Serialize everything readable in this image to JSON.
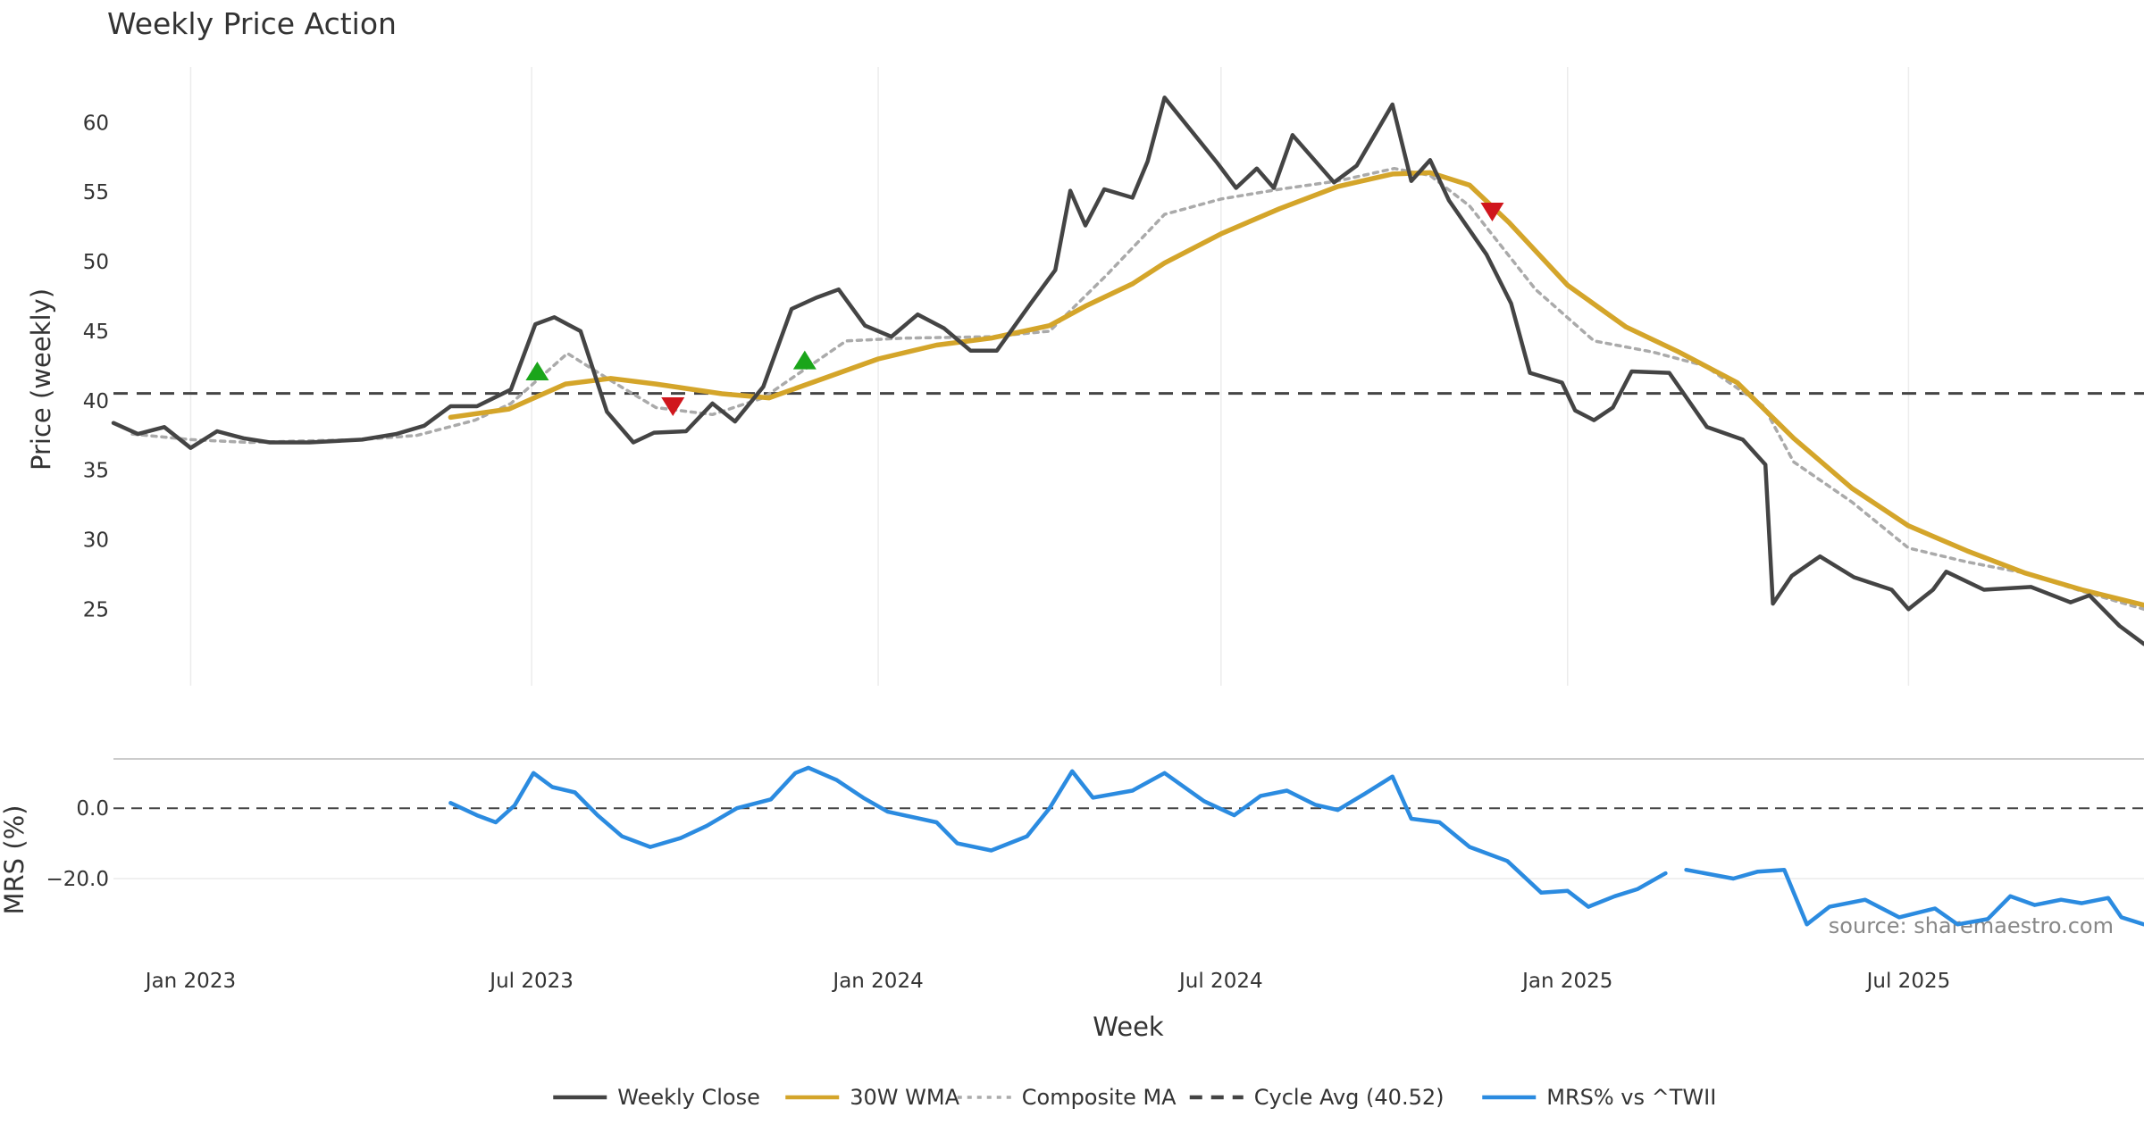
{
  "chart_data": {
    "type": "line",
    "title": "Weekly Price Action",
    "xlabel": "Week",
    "source": "source: sharemaestro.com",
    "x_ticks": [
      "Jan 2023",
      "Jul 2023",
      "Jan 2024",
      "Jul 2024",
      "Jan 2025",
      "Jul 2025"
    ],
    "x_range": [
      "2022-11-21",
      "2025-11-03"
    ],
    "price_panel": {
      "ylabel": "Price (weekly)",
      "ylim": [
        19.5,
        64.0
      ],
      "y_ticks": [
        "25",
        "30",
        "35",
        "40",
        "45",
        "50",
        "55",
        "60"
      ],
      "grid_x": true,
      "cycle_avg": 40.52,
      "series": [
        {
          "name": "Weekly Close",
          "color": "#444444",
          "points": [
            [
              "2022-11-21",
              38.4
            ],
            [
              "2022-12-04",
              37.6
            ],
            [
              "2022-12-18",
              38.1
            ],
            [
              "2023-01-01",
              36.6
            ],
            [
              "2023-01-15",
              37.8
            ],
            [
              "2023-01-29",
              37.3
            ],
            [
              "2023-02-12",
              37.0
            ],
            [
              "2023-03-05",
              37.0
            ],
            [
              "2023-04-02",
              37.2
            ],
            [
              "2023-04-20",
              37.6
            ],
            [
              "2023-05-05",
              38.2
            ],
            [
              "2023-05-19",
              39.6
            ],
            [
              "2023-06-02",
              39.6
            ],
            [
              "2023-06-20",
              40.8
            ],
            [
              "2023-07-03",
              45.5
            ],
            [
              "2023-07-13",
              46.0
            ],
            [
              "2023-07-27",
              45.0
            ],
            [
              "2023-08-10",
              39.2
            ],
            [
              "2023-08-24",
              37.0
            ],
            [
              "2023-09-04",
              37.7
            ],
            [
              "2023-09-21",
              37.8
            ],
            [
              "2023-10-05",
              39.8
            ],
            [
              "2023-10-17",
              38.5
            ],
            [
              "2023-11-01",
              41.0
            ],
            [
              "2023-11-16",
              46.6
            ],
            [
              "2023-11-29",
              47.4
            ],
            [
              "2023-12-11",
              48.0
            ],
            [
              "2023-12-25",
              45.4
            ],
            [
              "2024-01-08",
              44.6
            ],
            [
              "2024-01-22",
              46.2
            ],
            [
              "2024-02-05",
              45.2
            ],
            [
              "2024-02-19",
              43.6
            ],
            [
              "2024-03-04",
              43.6
            ],
            [
              "2024-03-22",
              47.0
            ],
            [
              "2024-04-04",
              49.4
            ],
            [
              "2024-04-12",
              55.1
            ],
            [
              "2024-04-20",
              52.6
            ],
            [
              "2024-04-30",
              55.2
            ],
            [
              "2024-05-15",
              54.6
            ],
            [
              "2024-05-23",
              57.2
            ],
            [
              "2024-06-01",
              61.8
            ],
            [
              "2024-06-29",
              57.1
            ],
            [
              "2024-07-09",
              55.3
            ],
            [
              "2024-07-20",
              56.7
            ],
            [
              "2024-07-29",
              55.3
            ],
            [
              "2024-08-08",
              59.1
            ],
            [
              "2024-08-30",
              55.7
            ],
            [
              "2024-09-11",
              56.9
            ],
            [
              "2024-09-30",
              61.3
            ],
            [
              "2024-10-10",
              55.8
            ],
            [
              "2024-10-20",
              57.3
            ],
            [
              "2024-10-30",
              54.4
            ],
            [
              "2024-11-19",
              50.5
            ],
            [
              "2024-12-02",
              47.0
            ],
            [
              "2024-12-12",
              42.0
            ],
            [
              "2024-12-29",
              41.3
            ],
            [
              "2025-01-05",
              39.3
            ],
            [
              "2025-01-15",
              38.6
            ],
            [
              "2025-01-25",
              39.5
            ],
            [
              "2025-02-04",
              42.1
            ],
            [
              "2025-02-24",
              42.0
            ],
            [
              "2025-03-16",
              38.1
            ],
            [
              "2025-04-04",
              37.2
            ],
            [
              "2025-04-16",
              35.4
            ],
            [
              "2025-04-20",
              25.4
            ],
            [
              "2025-04-30",
              27.4
            ],
            [
              "2025-05-15",
              28.8
            ],
            [
              "2025-06-02",
              27.3
            ],
            [
              "2025-06-22",
              26.4
            ],
            [
              "2025-07-01",
              25.0
            ],
            [
              "2025-07-14",
              26.4
            ],
            [
              "2025-07-21",
              27.7
            ],
            [
              "2025-08-10",
              26.4
            ],
            [
              "2025-09-04",
              26.6
            ],
            [
              "2025-09-25",
              25.5
            ],
            [
              "2025-10-05",
              26.0
            ],
            [
              "2025-10-21",
              23.8
            ],
            [
              "2025-11-03",
              22.5
            ]
          ]
        },
        {
          "name": "30W WMA",
          "color": "#d4a52a",
          "points": [
            [
              "2023-05-19",
              38.8
            ],
            [
              "2023-06-19",
              39.4
            ],
            [
              "2023-07-19",
              41.2
            ],
            [
              "2023-08-12",
              41.6
            ],
            [
              "2023-09-05",
              41.2
            ],
            [
              "2023-10-10",
              40.5
            ],
            [
              "2023-11-04",
              40.2
            ],
            [
              "2023-12-01",
              41.5
            ],
            [
              "2024-01-01",
              43.0
            ],
            [
              "2024-02-01",
              44.0
            ],
            [
              "2024-03-01",
              44.5
            ],
            [
              "2024-04-01",
              45.4
            ],
            [
              "2024-04-20",
              46.8
            ],
            [
              "2024-05-15",
              48.4
            ],
            [
              "2024-06-01",
              49.9
            ],
            [
              "2024-07-01",
              52.0
            ],
            [
              "2024-08-01",
              53.8
            ],
            [
              "2024-09-01",
              55.4
            ],
            [
              "2024-09-30",
              56.3
            ],
            [
              "2024-10-20",
              56.4
            ],
            [
              "2024-11-10",
              55.5
            ],
            [
              "2024-12-01",
              52.8
            ],
            [
              "2025-01-01",
              48.3
            ],
            [
              "2025-02-01",
              45.3
            ],
            [
              "2025-03-01",
              43.5
            ],
            [
              "2025-04-01",
              41.3
            ],
            [
              "2025-05-01",
              37.3
            ],
            [
              "2025-06-01",
              33.7
            ],
            [
              "2025-07-01",
              31.0
            ],
            [
              "2025-08-01",
              29.2
            ],
            [
              "2025-09-01",
              27.6
            ],
            [
              "2025-10-01",
              26.4
            ],
            [
              "2025-11-03",
              25.3
            ]
          ]
        },
        {
          "name": "Composite MA",
          "color": "#aaaaaa",
          "points": [
            [
              "2022-12-01",
              37.6
            ],
            [
              "2023-01-01",
              37.2
            ],
            [
              "2023-02-01",
              37.0
            ],
            [
              "2023-03-01",
              37.1
            ],
            [
              "2023-04-01",
              37.2
            ],
            [
              "2023-05-01",
              37.5
            ],
            [
              "2023-06-01",
              38.6
            ],
            [
              "2023-06-20",
              39.8
            ],
            [
              "2023-07-20",
              43.4
            ],
            [
              "2023-08-15",
              41.2
            ],
            [
              "2023-09-05",
              39.5
            ],
            [
              "2023-10-05",
              39.0
            ],
            [
              "2023-11-01",
              40.2
            ],
            [
              "2023-12-15",
              44.3
            ],
            [
              "2024-01-15",
              44.5
            ],
            [
              "2024-03-01",
              44.6
            ],
            [
              "2024-04-01",
              45.0
            ],
            [
              "2024-05-01",
              49.0
            ],
            [
              "2024-06-01",
              53.4
            ],
            [
              "2024-07-01",
              54.5
            ],
            [
              "2024-08-01",
              55.2
            ],
            [
              "2024-09-01",
              55.8
            ],
            [
              "2024-10-01",
              56.7
            ],
            [
              "2024-10-20",
              56.2
            ],
            [
              "2024-11-10",
              54.0
            ],
            [
              "2024-12-15",
              48.0
            ],
            [
              "2025-01-15",
              44.3
            ],
            [
              "2025-02-15",
              43.5
            ],
            [
              "2025-03-15",
              42.5
            ],
            [
              "2025-04-15",
              39.6
            ],
            [
              "2025-05-01",
              35.6
            ],
            [
              "2025-06-01",
              32.7
            ],
            [
              "2025-07-01",
              29.4
            ],
            [
              "2025-08-01",
              28.4
            ],
            [
              "2025-09-01",
              27.6
            ],
            [
              "2025-10-01",
              26.3
            ],
            [
              "2025-11-03",
              25.0
            ]
          ]
        }
      ],
      "buy_markers": [
        [
          "2023-07-04",
          42.1
        ],
        [
          "2023-11-23",
          42.9
        ]
      ],
      "sell_markers": [
        [
          "2023-09-14",
          39.6
        ],
        [
          "2024-11-22",
          53.6
        ]
      ]
    },
    "mrs_panel": {
      "ylabel": "MRS (%)",
      "ylim": [
        -38.0,
        14.0
      ],
      "y_ticks": [
        "0.0",
        "−20.0"
      ],
      "zero_line": 0,
      "series": [
        {
          "name": "MRS% vs ^TWII",
          "color": "#2b8be0",
          "segments": [
            [
              [
                "2023-05-19",
                1.5
              ],
              [
                "2023-06-02",
                -2.0
              ],
              [
                "2023-06-12",
                -4.0
              ],
              [
                "2023-06-22",
                0.8
              ],
              [
                "2023-07-02",
                10.0
              ],
              [
                "2023-07-12",
                6.0
              ],
              [
                "2023-07-24",
                4.5
              ],
              [
                "2023-08-05",
                -2.0
              ],
              [
                "2023-08-18",
                -8.0
              ],
              [
                "2023-09-02",
                -11.0
              ],
              [
                "2023-09-18",
                -8.5
              ],
              [
                "2023-10-02",
                -5.0
              ],
              [
                "2023-10-18",
                0.0
              ],
              [
                "2023-11-05",
                2.5
              ],
              [
                "2023-11-18",
                10.0
              ],
              [
                "2023-11-25",
                11.5
              ],
              [
                "2023-12-10",
                8.0
              ],
              [
                "2023-12-24",
                3.0
              ],
              [
                "2024-01-06",
                -1.0
              ],
              [
                "2024-02-01",
                -4.0
              ],
              [
                "2024-02-12",
                -10.0
              ],
              [
                "2024-03-01",
                -12.0
              ],
              [
                "2024-03-20",
                -8.0
              ],
              [
                "2024-04-01",
                0.0
              ],
              [
                "2024-04-13",
                10.5
              ],
              [
                "2024-04-24",
                3.0
              ],
              [
                "2024-05-15",
                5.0
              ],
              [
                "2024-06-01",
                10.0
              ],
              [
                "2024-06-22",
                2.0
              ],
              [
                "2024-07-08",
                -2.0
              ],
              [
                "2024-07-22",
                3.5
              ],
              [
                "2024-08-05",
                5.0
              ],
              [
                "2024-08-20",
                1.0
              ],
              [
                "2024-09-01",
                -0.5
              ],
              [
                "2024-09-15",
                4.0
              ],
              [
                "2024-09-30",
                9.0
              ],
              [
                "2024-10-10",
                -3.0
              ],
              [
                "2024-10-25",
                -4.0
              ],
              [
                "2024-11-10",
                -11.0
              ],
              [
                "2024-11-30",
                -15.0
              ],
              [
                "2024-12-18",
                -24.0
              ],
              [
                "2025-01-01",
                -23.5
              ],
              [
                "2025-01-12",
                -28.0
              ],
              [
                "2025-01-26",
                -25.0
              ],
              [
                "2025-02-07",
                -23.0
              ],
              [
                "2025-02-22",
                -18.5
              ]
            ],
            [
              [
                "2025-03-05",
                -17.5
              ],
              [
                "2025-03-30",
                -20.0
              ],
              [
                "2025-04-12",
                -18.0
              ],
              [
                "2025-04-26",
                -17.5
              ],
              [
                "2025-05-08",
                -33.0
              ],
              [
                "2025-05-20",
                -28.0
              ],
              [
                "2025-06-08",
                -26.0
              ],
              [
                "2025-06-26",
                -31.0
              ],
              [
                "2025-07-15",
                -28.5
              ],
              [
                "2025-07-27",
                -33.0
              ],
              [
                "2025-08-12",
                -31.5
              ],
              [
                "2025-08-24",
                -25.0
              ],
              [
                "2025-09-06",
                -27.5
              ],
              [
                "2025-09-20",
                -26.0
              ],
              [
                "2025-10-01",
                -27.0
              ],
              [
                "2025-10-15",
                -25.5
              ],
              [
                "2025-10-22",
                -31.0
              ],
              [
                "2025-11-03",
                -33.0
              ]
            ]
          ]
        }
      ]
    },
    "legend": {
      "position": "bottom-center",
      "entries": [
        {
          "label": "Weekly Close",
          "style": "solid",
          "color": "#444444"
        },
        {
          "label": "30W WMA",
          "style": "solid",
          "color": "#d4a52a"
        },
        {
          "label": "Composite MA",
          "style": "dotted",
          "color": "#aaaaaa"
        },
        {
          "label": "Cycle Avg (40.52)",
          "style": "dashed",
          "color": "#444444"
        },
        {
          "label": "MRS% vs ^TWII",
          "style": "solid",
          "color": "#2b8be0"
        }
      ]
    }
  }
}
